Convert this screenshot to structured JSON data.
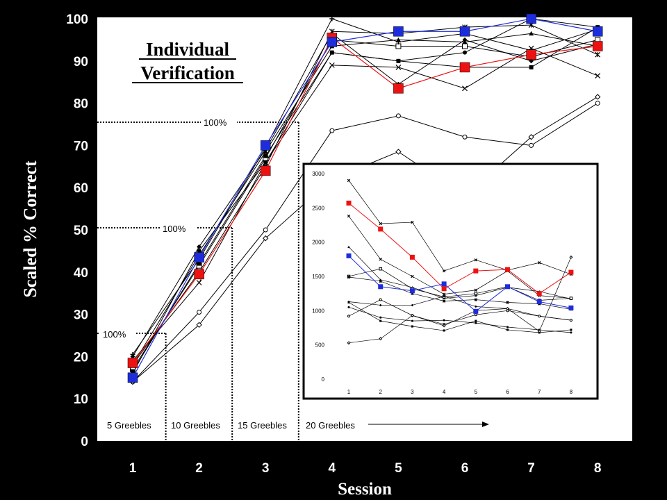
{
  "chart_data": {
    "type": "line",
    "title_line1": "Individual",
    "title_line2": "Verification",
    "xlabel": "Session",
    "ylabel": "Scaled % Correct",
    "categories": [
      "1",
      "2",
      "3",
      "4",
      "5",
      "6",
      "7",
      "8"
    ],
    "xlim": [
      1,
      8
    ],
    "ylim": [
      0,
      100
    ],
    "yticks": [
      "0",
      "10",
      "20",
      "30",
      "40",
      "50",
      "60",
      "70",
      "80",
      "90",
      "100"
    ],
    "grid": false,
    "legend": "none",
    "colors": {
      "red": "#ee1111",
      "blue": "#1e2ddc",
      "background": "#000000",
      "plot": "#ffffff"
    },
    "highlight_series": [
      {
        "color": "#ee1111",
        "values": [
          18.5,
          39.5,
          64,
          95.5,
          83.5,
          88.5,
          91.5,
          93.5
        ]
      },
      {
        "color": "#1e2ddc",
        "values": [
          15,
          43.5,
          70,
          94.5,
          97,
          97,
          100,
          97
        ]
      }
    ],
    "series": [
      {
        "marker": "diamond",
        "values": [
          20,
          46,
          69,
          96.5,
          84.5,
          95,
          90,
          94
        ]
      },
      {
        "marker": "circle",
        "values": [
          16,
          45,
          66,
          92,
          90,
          92,
          100,
          98
        ]
      },
      {
        "marker": "square",
        "values": [
          17,
          41.5,
          67,
          95,
          93.5,
          93.5,
          91,
          95
        ]
      },
      {
        "marker": "square-filled",
        "values": [
          16.5,
          42,
          67.5,
          92,
          90,
          88.5,
          88.5,
          98
        ]
      },
      {
        "marker": "triangle",
        "values": [
          18,
          44,
          68.5,
          93.5,
          95,
          94.5,
          96.5,
          93.5
        ]
      },
      {
        "marker": "x",
        "values": [
          19,
          37.5,
          66,
          89,
          88.5,
          83.5,
          93,
          86.5
        ]
      },
      {
        "marker": "star",
        "values": [
          18,
          40,
          65,
          97,
          96.5,
          98,
          98.5,
          91.5
        ]
      },
      {
        "marker": "plus",
        "values": [
          20.5,
          43,
          69.5,
          100,
          94.5,
          96.5,
          92.5,
          97.5
        ]
      },
      {
        "marker": "open-circle",
        "values": [
          14,
          30.5,
          50,
          73.5,
          77,
          72,
          70,
          80
        ]
      },
      {
        "marker": "open-diamond",
        "values": [
          14,
          27.5,
          48,
          62,
          68.5,
          58,
          72,
          81.5
        ]
      }
    ],
    "group_labels": [
      "5 Greebles",
      "10 Greebles",
      "15 Greebles",
      "20 Greebles"
    ],
    "threshold_label": "100%",
    "inset": {
      "type": "line",
      "categories": [
        "1",
        "2",
        "3",
        "4",
        "5",
        "6",
        "7",
        "8"
      ],
      "ylim": [
        0,
        3000
      ],
      "yticks": [
        "0",
        "500",
        "1000",
        "1500",
        "2000",
        "2500",
        "3000"
      ],
      "highlight_series": [
        {
          "color": "#ee1111",
          "values": [
            2570,
            2190,
            1780,
            1320,
            1580,
            1600,
            1250,
            1560
          ]
        },
        {
          "color": "#1e2ddc",
          "values": [
            1800,
            1350,
            1290,
            1390,
            990,
            1350,
            1130,
            1040
          ]
        }
      ],
      "series": [
        {
          "values": [
            2900,
            2270,
            2290,
            1580,
            1740,
            1590,
            1700,
            1530
          ]
        },
        {
          "values": [
            2380,
            1750,
            1500,
            1240,
            1300,
            1580,
            1220,
            1180
          ]
        },
        {
          "values": [
            1930,
            1450,
            1340,
            1180,
            1220,
            1340,
            1280,
            1170
          ]
        },
        {
          "values": [
            1500,
            1610,
            1320,
            1200,
            1250,
            1350,
            1150,
            1180
          ]
        },
        {
          "values": [
            1490,
            1430,
            1250,
            1140,
            1160,
            1120,
            1100,
            1020
          ]
        },
        {
          "values": [
            1130,
            1080,
            1080,
            1210,
            1060,
            1030,
            920,
            860
          ]
        },
        {
          "values": [
            1120,
            850,
            770,
            710,
            850,
            720,
            680,
            720
          ]
        },
        {
          "values": [
            1050,
            900,
            850,
            860,
            820,
            760,
            720,
            680
          ]
        },
        {
          "values": [
            920,
            1160,
            930,
            800,
            940,
            1000,
            920,
            860
          ]
        },
        {
          "values": [
            530,
            590,
            930,
            780,
            1000,
            1030,
            700,
            1780
          ]
        }
      ]
    }
  }
}
